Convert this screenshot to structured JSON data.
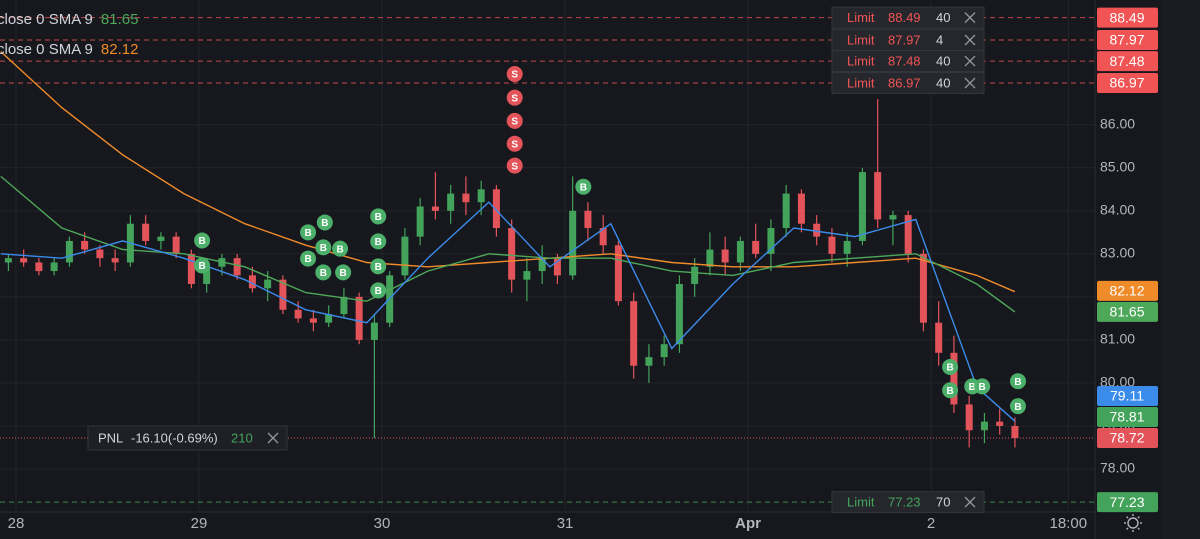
{
  "chart_data": {
    "type": "candlestick",
    "xlim": [
      -2.1,
      141.5
    ],
    "ylim": [
      77,
      88.9
    ],
    "xticks": [
      {
        "value": 0,
        "label": "28"
      },
      {
        "value": 24,
        "label": "29"
      },
      {
        "value": 48,
        "label": "30"
      },
      {
        "value": 72,
        "label": "31"
      },
      {
        "value": 96,
        "label": "Apr"
      },
      {
        "value": 120,
        "label": "2"
      },
      {
        "value": 138,
        "label": "18:00"
      }
    ],
    "yticks": [
      {
        "value": 78,
        "label": "78.00"
      },
      {
        "value": 79,
        "label": "79.00"
      },
      {
        "value": 80,
        "label": "80.00"
      },
      {
        "value": 81,
        "label": "81.00"
      },
      {
        "value": 82,
        "label": "82.00"
      },
      {
        "value": 83,
        "label": "83.00"
      },
      {
        "value": 84,
        "label": "84.00"
      },
      {
        "value": 85,
        "label": "85.00"
      },
      {
        "value": 86,
        "label": "86.00"
      }
    ],
    "grid": true,
    "up_color": "#43a35b",
    "down_color": "#e2545a",
    "candles": {
      "x": [
        -1,
        1,
        3,
        5,
        7,
        9,
        11,
        13,
        15,
        17,
        19,
        21,
        23,
        25,
        27,
        29,
        31,
        33,
        35,
        37,
        39,
        41,
        43,
        45,
        47,
        49,
        51,
        53,
        55,
        57,
        59,
        61,
        63,
        65,
        67,
        69,
        71,
        73,
        75,
        77,
        79,
        81,
        83,
        85,
        87,
        89,
        91,
        93,
        95,
        97,
        99,
        101,
        103,
        105,
        107,
        109,
        111,
        113,
        115,
        117,
        119,
        121,
        123,
        125,
        127,
        129,
        131
      ],
      "open": [
        82.8,
        82.9,
        82.8,
        82.6,
        82.8,
        83.3,
        83.1,
        82.9,
        82.8,
        83.7,
        83.3,
        83.4,
        83.0,
        82.3,
        82.7,
        82.9,
        82.5,
        82.2,
        82.4,
        81.7,
        81.5,
        81.4,
        81.6,
        82.0,
        81.0,
        81.4,
        82.5,
        83.4,
        84.1,
        84.0,
        84.4,
        84.2,
        84.5,
        83.6,
        82.4,
        82.6,
        82.9,
        82.5,
        84.0,
        83.6,
        83.2,
        81.9,
        80.4,
        80.6,
        80.9,
        82.3,
        82.7,
        83.1,
        82.8,
        83.3,
        83.0,
        83.6,
        84.4,
        83.7,
        83.4,
        83.0,
        83.3,
        84.9,
        83.8,
        83.9,
        83.0,
        81.4,
        80.7,
        79.5,
        78.9,
        79.1,
        79.0
      ],
      "high": [
        83.0,
        83.1,
        82.9,
        82.9,
        83.4,
        83.5,
        83.2,
        83.1,
        83.9,
        83.9,
        83.5,
        83.5,
        83.1,
        82.9,
        83.0,
        83.0,
        82.7,
        82.6,
        82.5,
        81.9,
        81.7,
        81.8,
        82.2,
        82.1,
        81.6,
        82.6,
        83.6,
        84.3,
        84.9,
        84.6,
        84.8,
        84.7,
        84.6,
        83.8,
        82.9,
        83.2,
        83.0,
        84.8,
        84.2,
        83.9,
        83.3,
        82.1,
        80.9,
        81.1,
        82.5,
        82.9,
        83.5,
        83.4,
        83.4,
        83.7,
        83.8,
        84.6,
        84.5,
        83.9,
        83.6,
        83.5,
        85.0,
        86.6,
        84.0,
        84.0,
        83.1,
        81.9,
        81.1,
        79.7,
        79.3,
        79.4,
        79.2
      ],
      "low": [
        82.6,
        82.7,
        82.5,
        82.5,
        82.7,
        83.0,
        82.7,
        82.6,
        82.7,
        83.2,
        83.1,
        82.9,
        82.2,
        82.1,
        82.5,
        82.4,
        82.1,
        81.9,
        81.6,
        81.4,
        81.2,
        81.3,
        81.5,
        80.9,
        78.72,
        81.3,
        82.4,
        83.2,
        83.8,
        83.7,
        83.9,
        83.9,
        83.4,
        82.1,
        81.9,
        82.3,
        82.3,
        82.4,
        83.3,
        83.0,
        81.8,
        80.1,
        80.0,
        80.4,
        80.7,
        82.0,
        82.5,
        82.5,
        82.6,
        82.9,
        82.6,
        83.4,
        83.5,
        83.2,
        82.8,
        82.7,
        83.2,
        83.6,
        83.2,
        82.8,
        81.2,
        80.4,
        79.3,
        78.5,
        78.6,
        78.8,
        78.5
      ],
      "close": [
        82.9,
        82.8,
        82.6,
        82.8,
        83.3,
        83.1,
        82.9,
        82.8,
        83.7,
        83.3,
        83.4,
        83.0,
        82.3,
        82.7,
        82.9,
        82.5,
        82.2,
        82.4,
        81.7,
        81.5,
        81.4,
        81.6,
        82.0,
        81.0,
        81.4,
        82.5,
        83.4,
        84.1,
        84.0,
        84.4,
        84.2,
        84.5,
        83.6,
        82.4,
        82.6,
        82.9,
        82.5,
        84.0,
        83.6,
        83.2,
        81.9,
        80.4,
        80.6,
        80.9,
        82.3,
        82.7,
        83.1,
        82.8,
        83.3,
        83.0,
        83.6,
        84.4,
        83.7,
        83.4,
        83.0,
        83.3,
        84.9,
        83.8,
        83.9,
        83.0,
        81.4,
        80.7,
        79.5,
        78.9,
        79.1,
        79.0,
        78.72
      ]
    },
    "series": [
      {
        "name": "close 0 SMA 9",
        "color": "#f08b2a",
        "x": [
          -2,
          6,
          14,
          22,
          30,
          38,
          46,
          54,
          62,
          70,
          78,
          86,
          94,
          102,
          110,
          118,
          126,
          131
        ],
        "values": [
          87.7,
          86.4,
          85.3,
          84.4,
          83.7,
          83.2,
          82.8,
          82.7,
          82.8,
          82.9,
          83.0,
          82.8,
          82.7,
          82.7,
          82.8,
          82.9,
          82.5,
          82.12
        ]
      },
      {
        "name": "close 0 SMA 9",
        "color": "#4ea85a",
        "x": [
          -2,
          6,
          14,
          22,
          30,
          38,
          46,
          54,
          62,
          70,
          78,
          86,
          94,
          102,
          110,
          118,
          126,
          131
        ],
        "values": [
          84.8,
          83.6,
          83.1,
          83.0,
          82.7,
          82.1,
          81.9,
          82.6,
          83.0,
          82.9,
          82.9,
          82.6,
          82.5,
          82.8,
          82.9,
          83.0,
          82.3,
          81.65
        ]
      },
      {
        "color": "#3b8beb",
        "x": [
          -2,
          6,
          14,
          22,
          30,
          38,
          46,
          54,
          62,
          70,
          78,
          86,
          94,
          102,
          110,
          118,
          126,
          131
        ],
        "values": [
          83.0,
          82.9,
          83.3,
          82.9,
          82.4,
          81.7,
          81.4,
          82.9,
          84.2,
          82.7,
          83.7,
          80.8,
          82.3,
          83.6,
          83.4,
          83.8,
          79.9,
          79.11
        ]
      }
    ],
    "legend_series": [
      1,
      0
    ],
    "markers": [
      {
        "x": 24.4,
        "y": 83.31,
        "text": "B"
      },
      {
        "x": 24.4,
        "y": 82.73,
        "text": "B"
      },
      {
        "x": 38.3,
        "y": 83.5,
        "text": "B"
      },
      {
        "x": 40.5,
        "y": 83.73,
        "text": "B"
      },
      {
        "x": 40.3,
        "y": 83.15,
        "text": "B"
      },
      {
        "x": 38.3,
        "y": 82.89,
        "text": "B"
      },
      {
        "x": 42.5,
        "y": 83.12,
        "text": "B"
      },
      {
        "x": 40.3,
        "y": 82.57,
        "text": "B"
      },
      {
        "x": 42.9,
        "y": 82.57,
        "text": "B"
      },
      {
        "x": 47.5,
        "y": 83.87,
        "text": "B"
      },
      {
        "x": 47.5,
        "y": 83.29,
        "text": "B"
      },
      {
        "x": 47.5,
        "y": 82.71,
        "text": "B"
      },
      {
        "x": 47.5,
        "y": 82.15,
        "text": "B"
      },
      {
        "x": 74.4,
        "y": 84.56,
        "text": "B"
      },
      {
        "x": 122.5,
        "y": 80.37,
        "text": "B"
      },
      {
        "x": 122.5,
        "y": 79.83,
        "text": "B"
      },
      {
        "x": 125.4,
        "y": 79.92,
        "text": "B"
      },
      {
        "x": 126.7,
        "y": 79.92,
        "text": "B"
      },
      {
        "x": 131.4,
        "y": 80.04,
        "text": "B"
      },
      {
        "x": 131.4,
        "y": 79.46,
        "text": "B"
      },
      {
        "x": 65.4,
        "y": 87.18,
        "text": "S"
      },
      {
        "x": 65.4,
        "y": 86.63,
        "text": "S"
      },
      {
        "x": 65.4,
        "y": 86.09,
        "text": "S"
      },
      {
        "x": 65.4,
        "y": 85.56,
        "text": "S"
      },
      {
        "x": 65.4,
        "y": 85.05,
        "text": "S"
      }
    ],
    "marker_colors": {
      "B": "#4caf6a",
      "S": "#e2545a"
    },
    "orders": [
      {
        "type": "Limit",
        "price": 88.49,
        "qty": 40,
        "color": "#f05454"
      },
      {
        "type": "Limit",
        "price": 87.97,
        "qty": 4,
        "color": "#f05454"
      },
      {
        "type": "Limit",
        "price": 87.48,
        "qty": 40,
        "color": "#f05454"
      },
      {
        "type": "Limit",
        "price": 86.97,
        "qty": 40,
        "color": "#f05454"
      },
      {
        "type": "Limit",
        "price": 77.23,
        "qty": 70,
        "color": "#43a35b"
      }
    ],
    "price_labels": [
      {
        "value": 78.81,
        "color": "#43a35b"
      },
      {
        "value": 78.72,
        "color": "#e2545a",
        "line": "dotted"
      }
    ],
    "pnl": {
      "label": "PNL",
      "value": "-16.10(-0.69%)",
      "qty": 210
    }
  }
}
